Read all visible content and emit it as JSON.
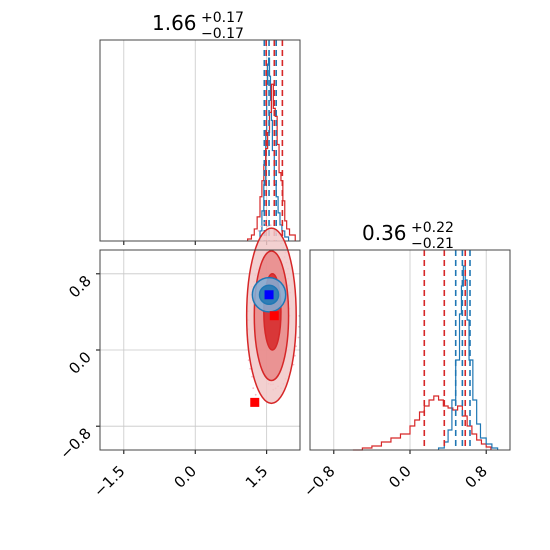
{
  "chart_data": [
    {
      "type": "histogram",
      "panel": "top-left",
      "title": {
        "value": "1.66",
        "plus": "+0.17",
        "minus": "−0.17"
      },
      "xlim": [
        -2.0,
        2.2
      ],
      "xticks": [
        -1.5,
        0.0,
        1.5
      ],
      "grid": true,
      "colors": {
        "red": "#d62728",
        "blue": "#1f77b4"
      },
      "red_hist": {
        "bins": [
          [
            1.1,
            0.01
          ],
          [
            1.18,
            0.03
          ],
          [
            1.24,
            0.06
          ],
          [
            1.3,
            0.12
          ],
          [
            1.36,
            0.22
          ],
          [
            1.4,
            0.3
          ],
          [
            1.44,
            0.38
          ],
          [
            1.48,
            0.46
          ],
          [
            1.52,
            0.54
          ],
          [
            1.56,
            0.64
          ],
          [
            1.6,
            0.78
          ],
          [
            1.64,
            0.66
          ],
          [
            1.68,
            0.62
          ],
          [
            1.72,
            0.48
          ],
          [
            1.76,
            0.34
          ],
          [
            1.8,
            0.3
          ],
          [
            1.84,
            0.2
          ],
          [
            1.88,
            0.1
          ],
          [
            1.92,
            0.06
          ],
          [
            1.98,
            0.03
          ],
          [
            2.1,
            0.0
          ]
        ],
        "quantiles": [
          1.49,
          1.66,
          1.83
        ]
      },
      "blue_hist": {
        "bins": [
          [
            1.36,
            0.05
          ],
          [
            1.4,
            0.15
          ],
          [
            1.44,
            0.28
          ],
          [
            1.48,
            0.55
          ],
          [
            1.5,
            0.78
          ],
          [
            1.52,
            0.88
          ],
          [
            1.54,
            0.91
          ],
          [
            1.56,
            0.82
          ],
          [
            1.58,
            0.7
          ],
          [
            1.6,
            0.6
          ],
          [
            1.62,
            0.45
          ],
          [
            1.66,
            0.28
          ],
          [
            1.7,
            0.22
          ],
          [
            1.74,
            0.14
          ],
          [
            1.78,
            0.08
          ],
          [
            1.82,
            0.05
          ],
          [
            1.88,
            0.02
          ],
          [
            1.96,
            0.0
          ]
        ],
        "quantiles": [
          1.45,
          1.55,
          1.7
        ]
      }
    },
    {
      "type": "scatter",
      "panel": "bottom-left",
      "xlim": [
        -2.0,
        2.2
      ],
      "ylim": [
        -1.05,
        1.05
      ],
      "xticks": [
        -1.5,
        0.0,
        1.5
      ],
      "yticks": [
        -0.8,
        0.0,
        0.8
      ],
      "grid": true,
      "red_contours": [
        {
          "cx": 1.6,
          "cy": 0.36,
          "rx": 0.52,
          "ry": 0.92
        },
        {
          "cx": 1.6,
          "cy": 0.36,
          "rx": 0.36,
          "ry": 0.68
        },
        {
          "cx": 1.62,
          "cy": 0.4,
          "rx": 0.18,
          "ry": 0.4
        }
      ],
      "blue_contours": [
        {
          "cx": 1.55,
          "cy": 0.58,
          "rx": 0.35,
          "ry": 0.18
        },
        {
          "cx": 1.55,
          "cy": 0.58,
          "rx": 0.2,
          "ry": 0.1
        }
      ],
      "markers": [
        {
          "x": 1.55,
          "y": 0.58,
          "color": "#0000ff"
        },
        {
          "x": 1.66,
          "y": 0.36,
          "color": "#ff0000"
        },
        {
          "x": 1.25,
          "y": -0.55,
          "color": "#ff0000"
        }
      ]
    },
    {
      "type": "histogram",
      "panel": "bottom-right",
      "title": {
        "value": "0.36",
        "plus": "+0.22",
        "minus": "−0.21"
      },
      "xlim": [
        -1.05,
        1.05
      ],
      "xticks": [
        -0.8,
        0.0,
        0.8
      ],
      "grid": true,
      "red_hist": {
        "bins": [
          [
            -0.6,
            0.0
          ],
          [
            -0.5,
            0.01
          ],
          [
            -0.4,
            0.02
          ],
          [
            -0.3,
            0.04
          ],
          [
            -0.2,
            0.06
          ],
          [
            -0.1,
            0.08
          ],
          [
            0.0,
            0.12
          ],
          [
            0.05,
            0.15
          ],
          [
            0.1,
            0.19
          ],
          [
            0.15,
            0.22
          ],
          [
            0.2,
            0.25
          ],
          [
            0.25,
            0.27
          ],
          [
            0.3,
            0.25
          ],
          [
            0.35,
            0.22
          ],
          [
            0.4,
            0.21
          ],
          [
            0.45,
            0.2
          ],
          [
            0.5,
            0.22
          ],
          [
            0.55,
            0.17
          ],
          [
            0.6,
            0.12
          ],
          [
            0.65,
            0.08
          ],
          [
            0.7,
            0.05
          ],
          [
            0.75,
            0.03
          ],
          [
            0.8,
            0.015
          ],
          [
            0.85,
            0.0
          ]
        ],
        "quantiles": [
          0.15,
          0.36,
          0.58
        ]
      },
      "blue_hist": {
        "bins": [
          [
            0.3,
            0.01
          ],
          [
            0.36,
            0.04
          ],
          [
            0.4,
            0.1
          ],
          [
            0.44,
            0.25
          ],
          [
            0.48,
            0.45
          ],
          [
            0.52,
            0.68
          ],
          [
            0.54,
            0.82
          ],
          [
            0.56,
            0.92
          ],
          [
            0.58,
            0.85
          ],
          [
            0.6,
            0.65
          ],
          [
            0.62,
            0.45
          ],
          [
            0.66,
            0.25
          ],
          [
            0.7,
            0.13
          ],
          [
            0.74,
            0.06
          ],
          [
            0.8,
            0.03
          ],
          [
            0.86,
            0.01
          ],
          [
            0.92,
            0.0
          ]
        ],
        "quantiles": [
          0.48,
          0.55,
          0.63
        ]
      }
    }
  ]
}
